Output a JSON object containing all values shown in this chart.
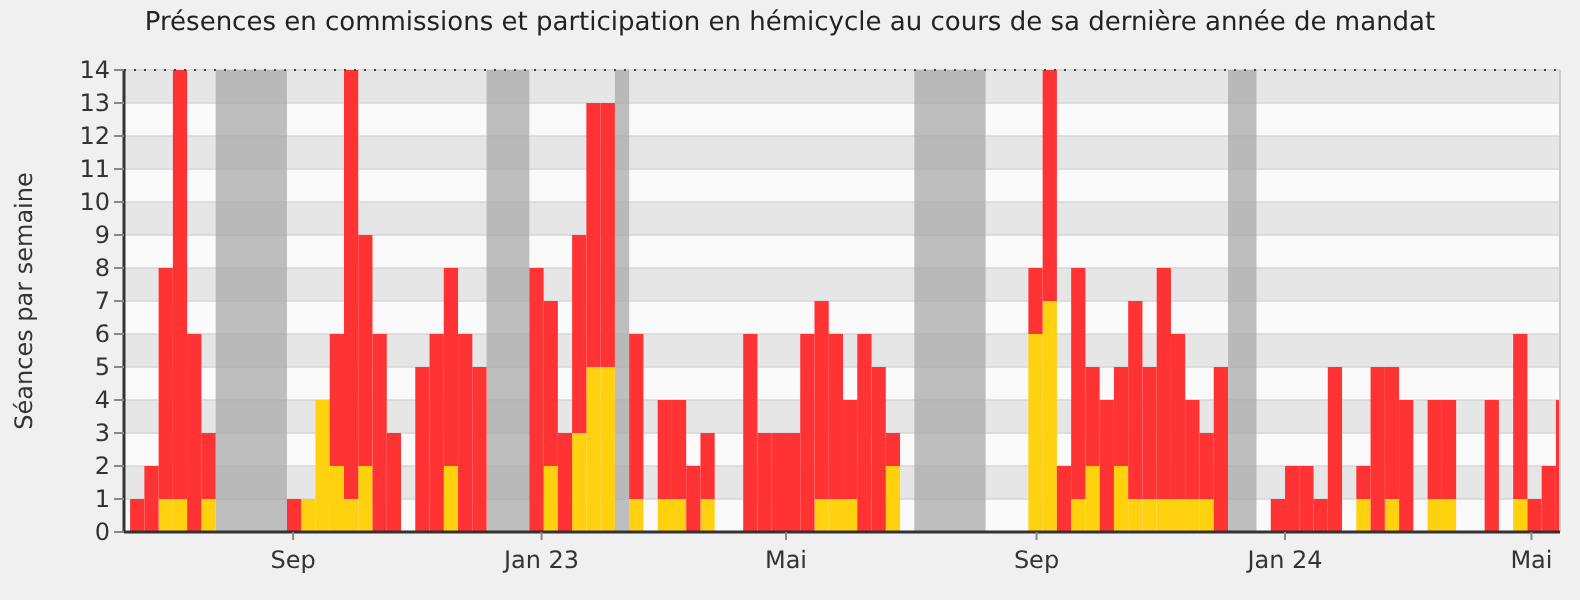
{
  "chart_data": {
    "type": "bar",
    "stacked": true,
    "title": "Présences en commissions et participation en hémicycle au cours de sa dernière année de mandat",
    "ylabel": "Séances par semaine",
    "x": [
      "2022-06-13",
      "2022-06-20",
      "2022-06-27",
      "2022-07-04",
      "2022-07-11",
      "2022-07-18",
      "2022-07-25",
      "2022-08-01",
      "2022-08-08",
      "2022-08-15",
      "2022-08-22",
      "2022-08-29",
      "2022-09-05",
      "2022-09-12",
      "2022-09-19",
      "2022-09-26",
      "2022-10-03",
      "2022-10-10",
      "2022-10-17",
      "2022-10-24",
      "2022-10-31",
      "2022-11-07",
      "2022-11-14",
      "2022-11-21",
      "2022-11-28",
      "2022-12-05",
      "2022-12-12",
      "2022-12-19",
      "2022-12-26",
      "2023-01-02",
      "2023-01-09",
      "2023-01-16",
      "2023-01-23",
      "2023-01-30",
      "2023-02-06",
      "2023-02-13",
      "2023-02-20",
      "2023-02-27",
      "2023-03-06",
      "2023-03-13",
      "2023-03-20",
      "2023-03-27",
      "2023-04-03",
      "2023-04-10",
      "2023-04-17",
      "2023-04-24",
      "2023-05-01",
      "2023-05-08",
      "2023-05-15",
      "2023-05-22",
      "2023-05-29",
      "2023-06-05",
      "2023-06-12",
      "2023-06-19",
      "2023-06-26",
      "2023-07-03",
      "2023-07-10",
      "2023-07-17",
      "2023-07-24",
      "2023-07-31",
      "2023-08-07",
      "2023-08-14",
      "2023-08-21",
      "2023-08-28",
      "2023-09-04",
      "2023-09-11",
      "2023-09-18",
      "2023-09-25",
      "2023-10-02",
      "2023-10-09",
      "2023-10-16",
      "2023-10-23",
      "2023-10-30",
      "2023-11-06",
      "2023-11-13",
      "2023-11-20",
      "2023-11-27",
      "2023-12-04",
      "2023-12-11",
      "2023-12-18",
      "2023-12-25",
      "2024-01-01",
      "2024-01-08",
      "2024-01-15",
      "2024-01-22",
      "2024-01-29",
      "2024-02-05",
      "2024-02-12",
      "2024-02-19",
      "2024-02-26",
      "2024-03-04",
      "2024-03-11",
      "2024-03-18",
      "2024-03-25",
      "2024-04-01",
      "2024-04-08",
      "2024-04-15",
      "2024-04-22",
      "2024-04-29",
      "2024-05-06",
      "2024-05-13"
    ],
    "series": [
      {
        "color": "#ffd10f",
        "values": [
          0,
          0,
          1,
          1,
          0,
          1,
          0,
          0,
          0,
          0,
          0,
          0,
          1,
          4,
          2,
          1,
          2,
          0,
          0,
          0,
          0,
          0,
          2,
          0,
          0,
          0,
          0,
          0,
          0,
          2,
          0,
          3,
          5,
          5,
          0,
          1,
          0,
          1,
          1,
          0,
          1,
          0,
          0,
          0,
          0,
          0,
          0,
          0,
          1,
          1,
          1,
          0,
          0,
          2,
          0,
          0,
          0,
          0,
          0,
          0,
          0,
          0,
          0,
          6,
          7,
          0,
          1,
          2,
          0,
          2,
          1,
          1,
          1,
          1,
          1,
          1,
          0,
          0,
          0,
          0,
          0,
          0,
          0,
          0,
          0,
          0,
          1,
          0,
          1,
          0,
          0,
          1,
          1,
          0,
          0,
          0,
          0,
          1,
          0,
          0,
          0
        ]
      },
      {
        "color": "#ff3333",
        "values": [
          1,
          2,
          7,
          13,
          6,
          2,
          0,
          0,
          0,
          0,
          0,
          1,
          0,
          0,
          4,
          13,
          7,
          6,
          3,
          0,
          5,
          6,
          6,
          6,
          5,
          0,
          0,
          0,
          8,
          5,
          3,
          6,
          8,
          8,
          0,
          5,
          0,
          3,
          3,
          2,
          2,
          0,
          0,
          6,
          3,
          3,
          3,
          6,
          6,
          5,
          3,
          6,
          5,
          1,
          0,
          0,
          0,
          0,
          0,
          0,
          0,
          0,
          0,
          2,
          7,
          2,
          7,
          3,
          4,
          3,
          6,
          4,
          7,
          5,
          3,
          2,
          5,
          0,
          0,
          0,
          1,
          2,
          2,
          1,
          5,
          0,
          1,
          5,
          4,
          4,
          0,
          3,
          3,
          0,
          0,
          4,
          0,
          5,
          1,
          2,
          4
        ]
      }
    ],
    "xlim": [
      "2022-06-10",
      "2024-05-15"
    ],
    "xticks": [
      {
        "value": "2022-09-01",
        "label": "Sep"
      },
      {
        "value": "2023-01-01",
        "label": "Jan 23"
      },
      {
        "value": "2023-05-01",
        "label": "Mai"
      },
      {
        "value": "2023-09-01",
        "label": "Sep"
      },
      {
        "value": "2024-01-01",
        "label": "Jan 24"
      },
      {
        "value": "2024-05-01",
        "label": "Mai"
      }
    ],
    "ylim": [
      0,
      14
    ],
    "yticks": [
      0,
      1,
      2,
      3,
      4,
      5,
      6,
      7,
      8,
      9,
      10,
      11,
      12,
      13,
      14
    ],
    "grid": "y",
    "bands": [
      {
        "axis": "x",
        "from": "2022-07-25",
        "to": "2022-08-29",
        "color": "#aaaaaa"
      },
      {
        "axis": "x",
        "from": "2022-12-05",
        "to": "2022-12-26",
        "color": "#aaaaaa"
      },
      {
        "axis": "x",
        "from": "2023-02-06",
        "to": "2023-02-13",
        "color": "#aaaaaa"
      },
      {
        "axis": "x",
        "from": "2023-07-03",
        "to": "2023-08-07",
        "color": "#aaaaaa"
      },
      {
        "axis": "x",
        "from": "2023-12-04",
        "to": "2023-12-18",
        "color": "#aaaaaa"
      }
    ]
  }
}
